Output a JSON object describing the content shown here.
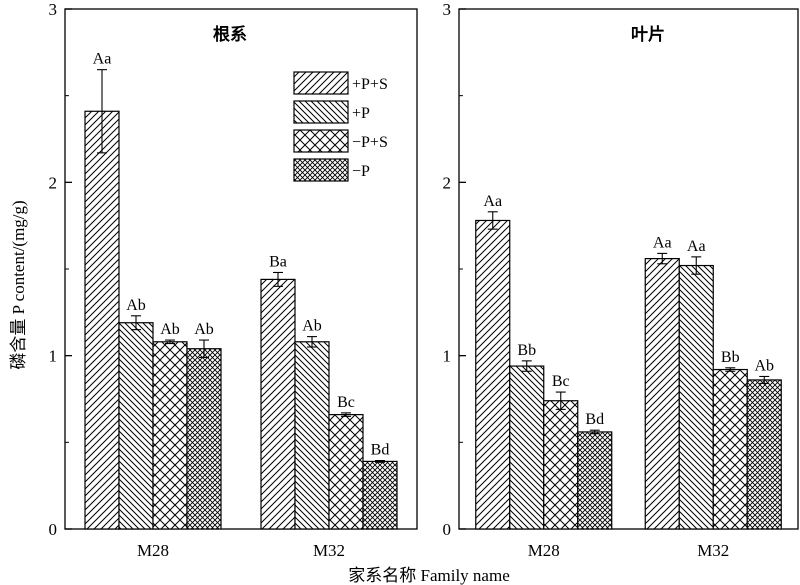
{
  "chart_data": [
    {
      "type": "bar",
      "title": "根系",
      "categories": [
        "M28",
        "M32"
      ],
      "ylim": [
        0,
        3
      ],
      "yticks": [
        "0",
        "1",
        "2",
        "3"
      ],
      "series": [
        {
          "name": "+P+S",
          "values": [
            2.41,
            1.44
          ],
          "errors": [
            0.24,
            0.04
          ],
          "labels": [
            "Aa",
            "Ba"
          ]
        },
        {
          "name": "+P",
          "values": [
            1.19,
            1.08
          ],
          "errors": [
            0.04,
            0.03
          ],
          "labels": [
            "Ab",
            "Ab"
          ]
        },
        {
          "name": "−P+S",
          "values": [
            1.08,
            0.66
          ],
          "errors": [
            0.01,
            0.01
          ],
          "labels": [
            "Ab",
            "Bc"
          ]
        },
        {
          "name": "−P",
          "values": [
            1.04,
            0.39
          ],
          "errors": [
            0.05,
            0.005
          ],
          "labels": [
            "Ab",
            "Bd"
          ]
        }
      ]
    },
    {
      "type": "bar",
      "title": "叶片",
      "categories": [
        "M28",
        "M32"
      ],
      "ylim": [
        0,
        3
      ],
      "yticks": [
        "0",
        "1",
        "2",
        "3"
      ],
      "series": [
        {
          "name": "+P+S",
          "values": [
            1.78,
            1.56
          ],
          "errors": [
            0.05,
            0.03
          ],
          "labels": [
            "Aa",
            "Aa"
          ]
        },
        {
          "name": "+P",
          "values": [
            0.94,
            1.52
          ],
          "errors": [
            0.03,
            0.05
          ],
          "labels": [
            "Bb",
            "Aa"
          ]
        },
        {
          "name": "−P+S",
          "values": [
            0.74,
            0.92
          ],
          "errors": [
            0.05,
            0.01
          ],
          "labels": [
            "Bc",
            "Bb"
          ]
        },
        {
          "name": "−P",
          "values": [
            0.56,
            0.86
          ],
          "errors": [
            0.01,
            0.02
          ],
          "labels": [
            "Bd",
            "Ab"
          ]
        }
      ]
    }
  ],
  "axes": {
    "ylabel": "磷含量 P content/(mg/g)",
    "xlabel": "家系名称 Family name"
  },
  "legend": {
    "position": "top-right of left panel",
    "items": [
      "+P+S",
      "+P",
      "−P+S",
      "−P"
    ]
  }
}
